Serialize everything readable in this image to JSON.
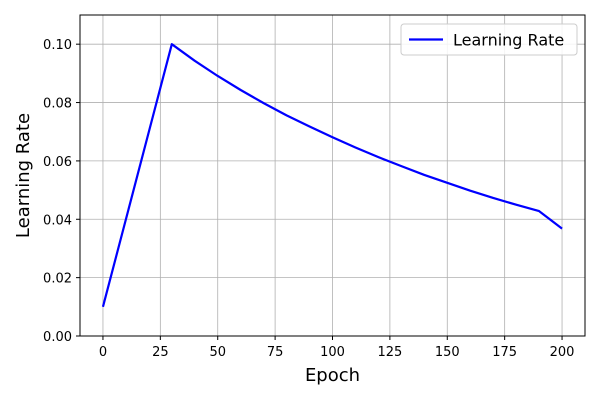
{
  "chart_data": {
    "type": "line",
    "title": "",
    "xlabel": "Epoch",
    "ylabel": "Learning Rate",
    "xlim": [
      -10,
      210
    ],
    "ylim": [
      0,
      0.11
    ],
    "xticks": [
      0,
      25,
      50,
      75,
      100,
      125,
      150,
      175,
      200
    ],
    "xtick_labels": [
      "0",
      "25",
      "50",
      "75",
      "100",
      "125",
      "150",
      "175",
      "200"
    ],
    "yticks": [
      0.0,
      0.02,
      0.04,
      0.06,
      0.08,
      0.1
    ],
    "ytick_labels": [
      "0.00",
      "0.02",
      "0.04",
      "0.06",
      "0.08",
      "0.10"
    ],
    "grid": true,
    "legend_position": "top-right",
    "series": [
      {
        "name": "Learning Rate",
        "color": "#0000ff",
        "x": [
          0,
          30,
          40,
          50,
          60,
          70,
          80,
          90,
          100,
          110,
          120,
          130,
          140,
          150,
          160,
          170,
          180,
          190,
          200
        ],
        "y": [
          0.01,
          0.1,
          0.0943,
          0.0891,
          0.0843,
          0.0798,
          0.0756,
          0.0718,
          0.0681,
          0.0646,
          0.0613,
          0.0582,
          0.0552,
          0.0525,
          0.0498,
          0.0473,
          0.045,
          0.0428,
          0.0368
        ]
      }
    ]
  }
}
